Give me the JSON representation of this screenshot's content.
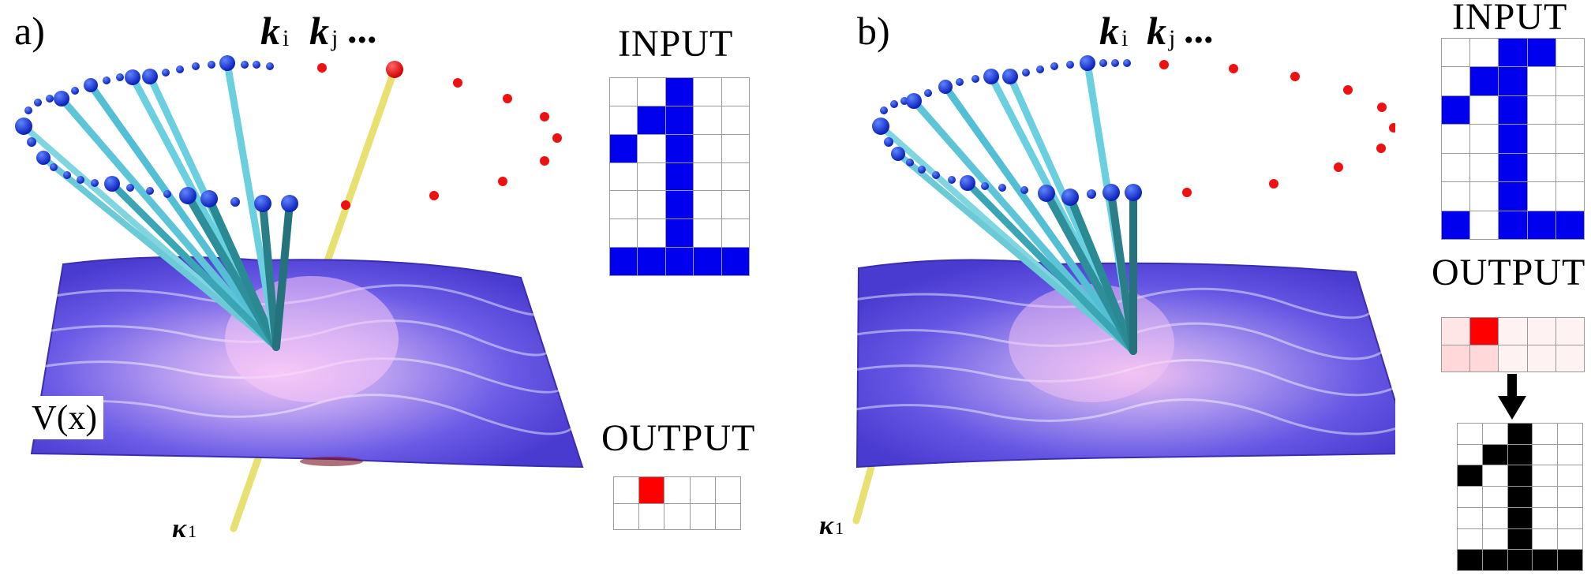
{
  "panels": [
    {
      "letter": "a)",
      "k_i": "k",
      "k_i_sub": "i",
      "k_j": "k",
      "k_j_sub": "j",
      "ellipsis": "...",
      "kappa": "κ",
      "kappa_sub": "1",
      "potential_label": "V(x)",
      "input_title": "INPUT",
      "output_title": "OUTPUT",
      "input_grid": {
        "cols": 5,
        "rows": 7,
        "cells": [
          0,
          0,
          1,
          0,
          0,
          0,
          1,
          1,
          0,
          0,
          1,
          0,
          1,
          0,
          0,
          0,
          0,
          1,
          0,
          0,
          0,
          0,
          1,
          0,
          0,
          0,
          0,
          1,
          0,
          0,
          1,
          1,
          1,
          1,
          1
        ]
      },
      "output_grid": {
        "cols": 5,
        "rows": 2,
        "cells": [
          0,
          1,
          0,
          0,
          0,
          0,
          0,
          0,
          0,
          0
        ]
      }
    },
    {
      "letter": "b)",
      "k_i": "k",
      "k_i_sub": "i",
      "k_j": "k",
      "k_j_sub": "j",
      "ellipsis": "...",
      "kappa": "κ",
      "kappa_sub": "1",
      "input_title": "INPUT",
      "output_title": "OUTPUT",
      "input_grid": {
        "cols": 5,
        "rows": 7,
        "cells": [
          0,
          0,
          1,
          1,
          0,
          0,
          1,
          1,
          0,
          0,
          1,
          0,
          1,
          0,
          0,
          0,
          0,
          1,
          0,
          0,
          0,
          0,
          1,
          0,
          0,
          0,
          0,
          1,
          0,
          0,
          1,
          0,
          1,
          1,
          1
        ]
      },
      "output_grid": {
        "cols": 5,
        "rows": 2,
        "cells": [
          0.1,
          1,
          0.05,
          0.05,
          0.05,
          0.15,
          0.15,
          0.05,
          0.05,
          0.05
        ]
      },
      "reconstructed_grid": {
        "cols": 5,
        "rows": 7,
        "cells": [
          0,
          0,
          1,
          0,
          0,
          0,
          1,
          1,
          0,
          0,
          1,
          0,
          1,
          0,
          0,
          0,
          0,
          1,
          0,
          0,
          0,
          0,
          1,
          0,
          0,
          0,
          0,
          1,
          0,
          0,
          1,
          1,
          1,
          1,
          1
        ]
      }
    }
  ],
  "colors": {
    "input_on": "#0000ee",
    "output_on": "#ff0000",
    "recon_on": "#000000",
    "rod_cyan": "#55c8dc",
    "rod_teal": "#2f8f98",
    "ball_blue": "#1030d8",
    "dot_red": "#ee1111",
    "rod_yellow": "#e8e070",
    "surface_dark": "#4a3bd0",
    "surface_light": "#f0b8f0"
  }
}
